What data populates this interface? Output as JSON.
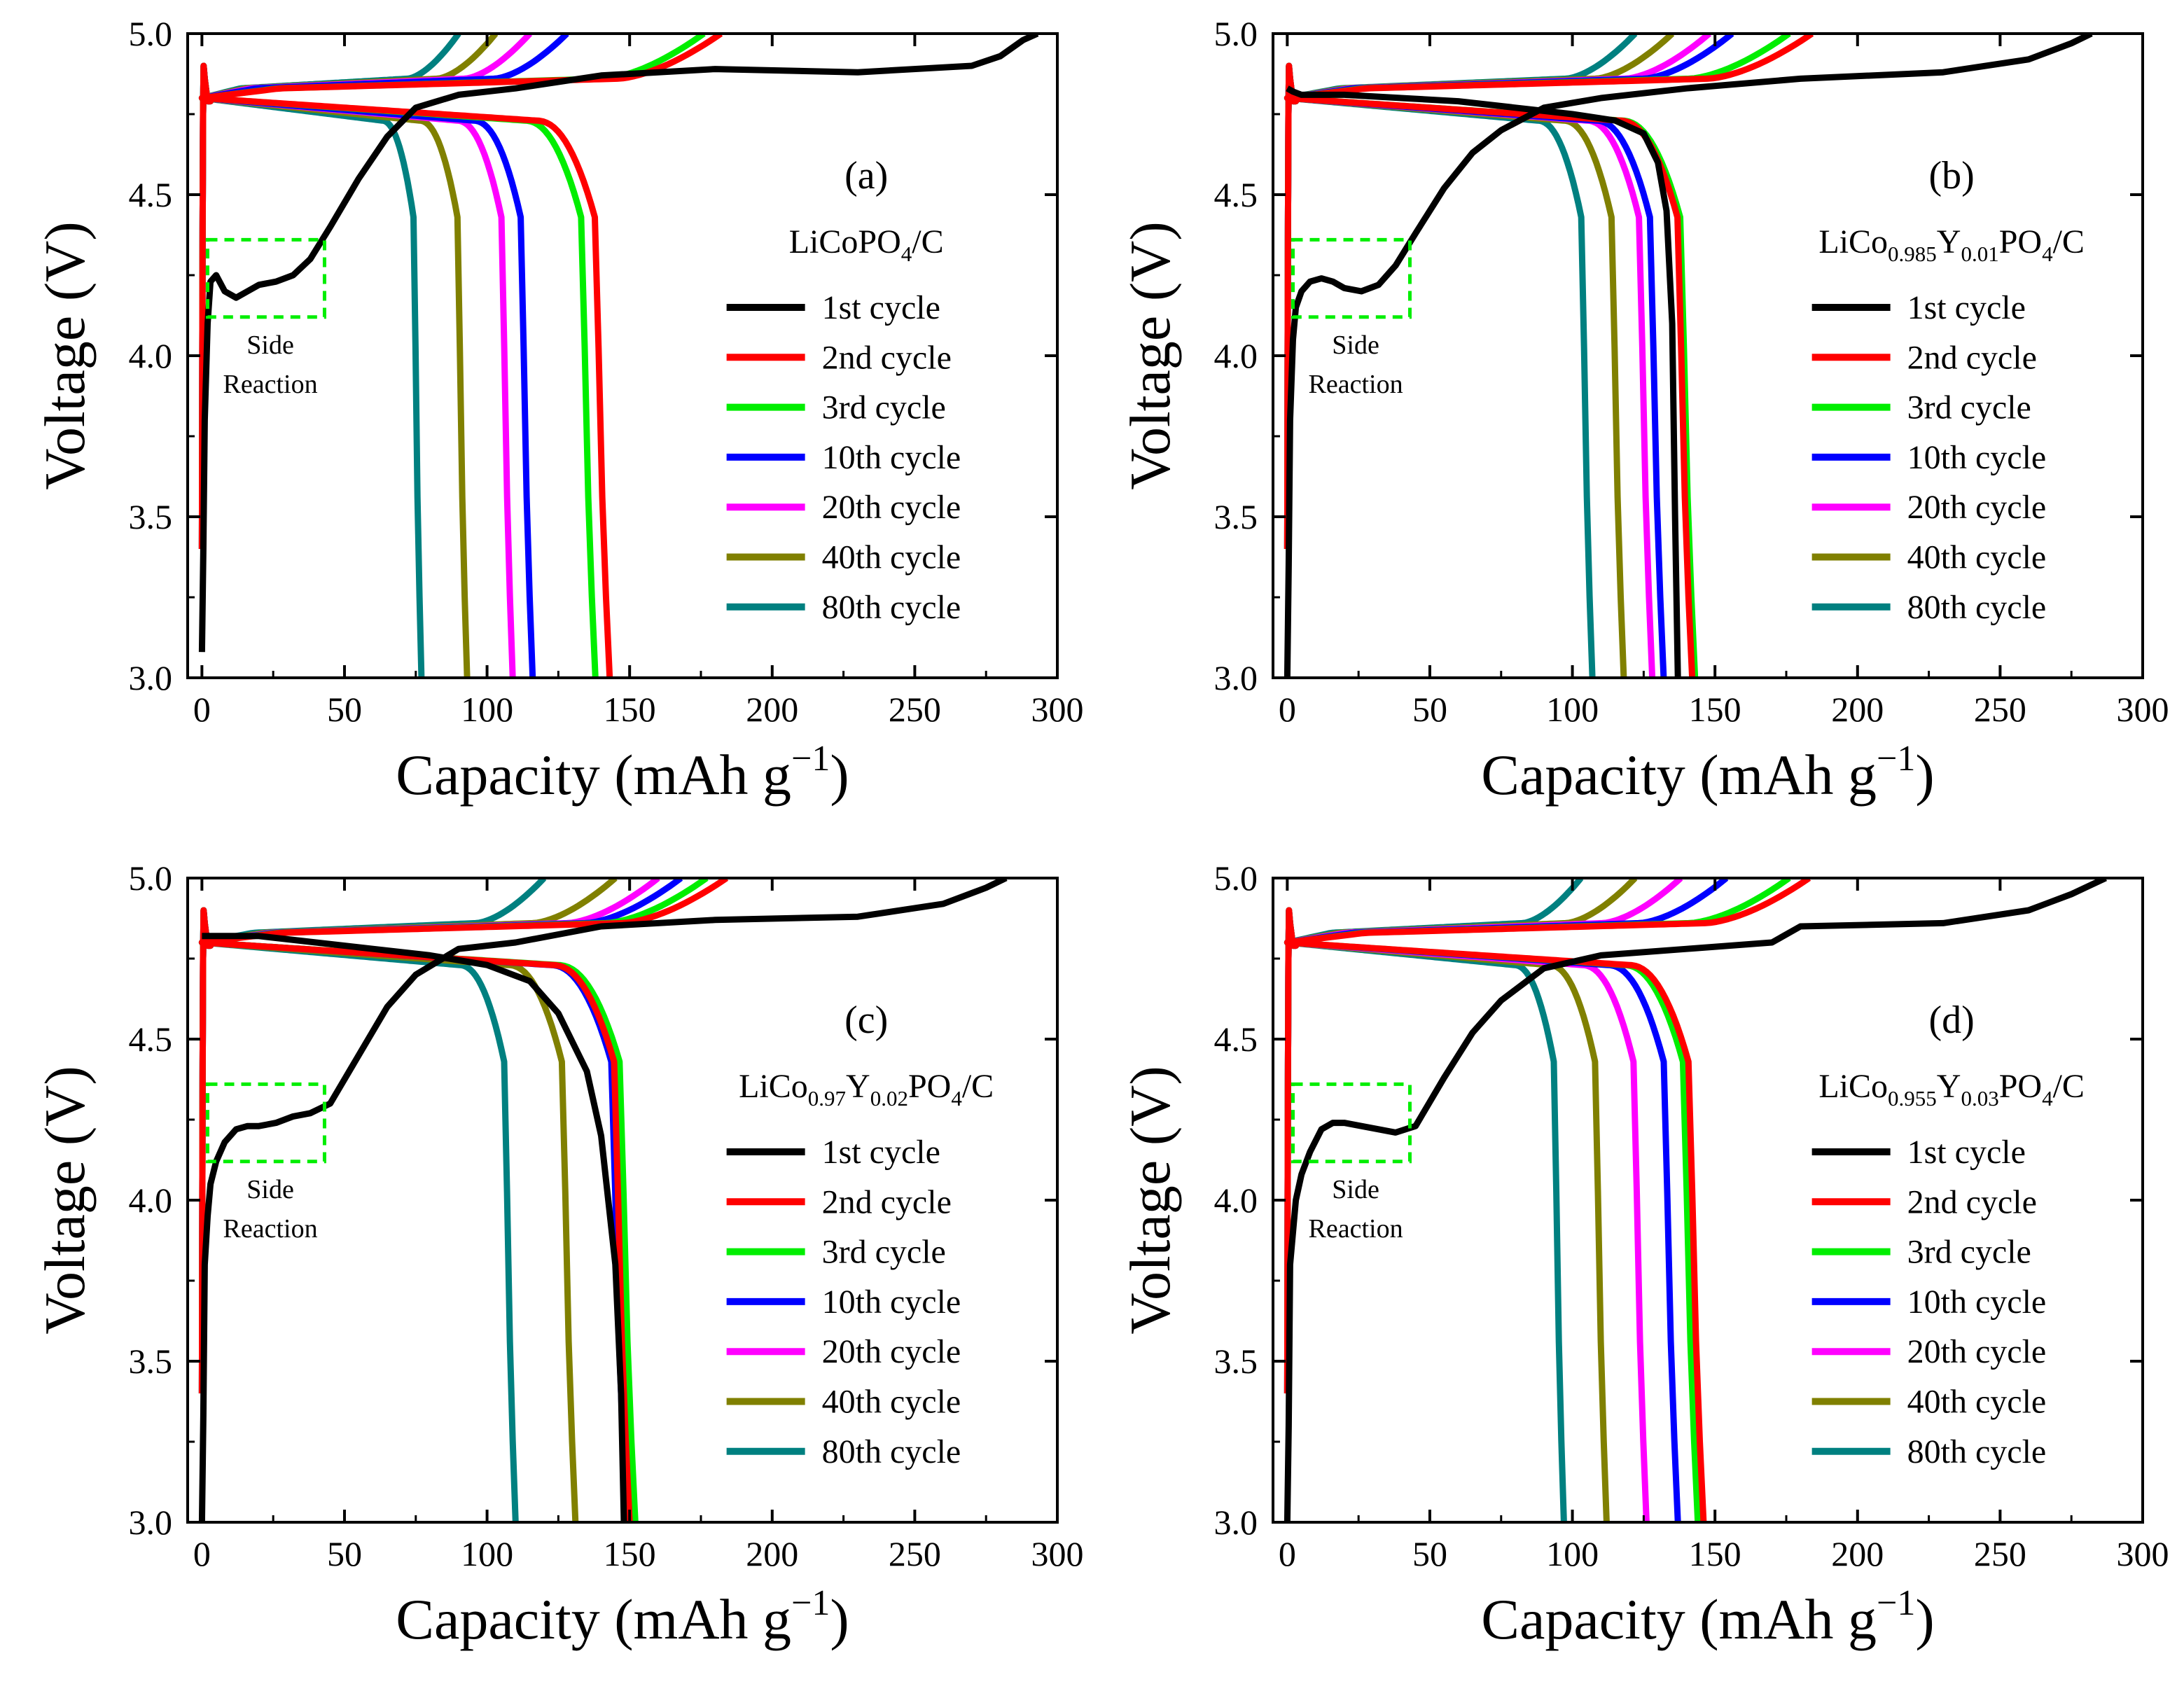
{
  "figure": {
    "legend_labels": [
      "1st cycle",
      "2nd cycle",
      "3rd cycle",
      "10th cycle",
      "20th cycle",
      "40th cycle",
      "80th cycle"
    ],
    "legend_colors": [
      "#000000",
      "#ff0000",
      "#00ee00",
      "#0000ff",
      "#ff00ff",
      "#808000",
      "#008080"
    ],
    "annotation_box_color": "#00ee00",
    "annotation_line1": "Side",
    "annotation_line2": "Reaction"
  },
  "chart_data": [
    {
      "type": "line",
      "panel": "(a)",
      "sample": {
        "base": "LiCoPO",
        "sub1": "4",
        "tail": "/C"
      },
      "xlabel": "Capacity (mAh g",
      "xlabel_sup": "−1",
      "ylabel": "Voltage (V)",
      "xlim": [
        -5,
        300
      ],
      "ylim": [
        3.0,
        5.0
      ],
      "xticks": [
        "0",
        "50",
        "100",
        "150",
        "200",
        "250",
        "300"
      ],
      "yticks": [
        "3.0",
        "3.5",
        "4.0",
        "4.5",
        "5.0"
      ],
      "first_charge": {
        "x": [
          0,
          0.5,
          1,
          2,
          3,
          5,
          8,
          12,
          16,
          20,
          26,
          32,
          38,
          45,
          55,
          65,
          75,
          90,
          110,
          140,
          180,
          230,
          270,
          280,
          288,
          293
        ],
        "y": [
          3.08,
          3.4,
          3.8,
          4.1,
          4.23,
          4.25,
          4.2,
          4.18,
          4.2,
          4.22,
          4.23,
          4.25,
          4.3,
          4.4,
          4.55,
          4.68,
          4.77,
          4.81,
          4.83,
          4.87,
          4.89,
          4.88,
          4.9,
          4.93,
          4.98,
          5.0
        ]
      },
      "first_discharge": null,
      "series": [
        {
          "name": "2nd cycle",
          "charge_end": 182,
          "discharge_end": 143
        },
        {
          "name": "3rd cycle",
          "charge_end": 176,
          "discharge_end": 138
        },
        {
          "name": "10th cycle",
          "charge_end": 128,
          "discharge_end": 116
        },
        {
          "name": "20th cycle",
          "charge_end": 115,
          "discharge_end": 109
        },
        {
          "name": "40th cycle",
          "charge_end": 103,
          "discharge_end": 93
        },
        {
          "name": "80th cycle",
          "charge_end": 90,
          "discharge_end": 77
        }
      ]
    },
    {
      "type": "line",
      "panel": "(b)",
      "sample": {
        "base": "LiCo",
        "sub1": "0.985",
        "mid": "Y",
        "sub2": "0.01",
        "post": "PO",
        "sub3": "4",
        "tail": "/C"
      },
      "xlabel": "Capacity (mAh g",
      "xlabel_sup": "−1",
      "ylabel": "Voltage (V)",
      "xlim": [
        -5,
        300
      ],
      "ylim": [
        3.0,
        5.0
      ],
      "xticks": [
        "0",
        "50",
        "100",
        "150",
        "200",
        "250",
        "300"
      ],
      "yticks": [
        "3.0",
        "3.5",
        "4.0",
        "4.5",
        "5.0"
      ],
      "first_charge": {
        "x": [
          0,
          0.5,
          1,
          2,
          3,
          5,
          8,
          12,
          16,
          20,
          26,
          32,
          38,
          45,
          55,
          65,
          75,
          90,
          110,
          140,
          180,
          230,
          260,
          275,
          282
        ],
        "y": [
          3.0,
          3.35,
          3.8,
          4.05,
          4.15,
          4.2,
          4.23,
          4.24,
          4.23,
          4.21,
          4.2,
          4.22,
          4.28,
          4.38,
          4.52,
          4.63,
          4.7,
          4.77,
          4.8,
          4.83,
          4.86,
          4.88,
          4.92,
          4.97,
          5.0
        ]
      },
      "first_discharge": {
        "x": [
          0,
          2,
          5,
          20,
          40,
          60,
          80,
          100,
          115,
          125,
          130,
          133,
          135,
          136,
          137
        ],
        "y": [
          4.83,
          4.82,
          4.81,
          4.81,
          4.8,
          4.79,
          4.77,
          4.75,
          4.73,
          4.69,
          4.6,
          4.45,
          4.1,
          3.5,
          3.0
        ]
      },
      "series": [
        {
          "name": "2nd cycle",
          "charge_end": 184,
          "discharge_end": 142
        },
        {
          "name": "3rd cycle",
          "charge_end": 176,
          "discharge_end": 143
        },
        {
          "name": "10th cycle",
          "charge_end": 156,
          "discharge_end": 132
        },
        {
          "name": "20th cycle",
          "charge_end": 148,
          "discharge_end": 128
        },
        {
          "name": "40th cycle",
          "charge_end": 135,
          "discharge_end": 118
        },
        {
          "name": "80th cycle",
          "charge_end": 122,
          "discharge_end": 107
        }
      ]
    },
    {
      "type": "line",
      "panel": "(c)",
      "sample": {
        "base": "LiCo",
        "sub1": "0.97",
        "mid": "Y",
        "sub2": "0.02",
        "post": "PO",
        "sub3": "4",
        "tail": "/C"
      },
      "xlabel": "Capacity (mAh g",
      "xlabel_sup": "−1",
      "ylabel": "Voltage (V)",
      "xlim": [
        -5,
        300
      ],
      "ylim": [
        3.0,
        5.0
      ],
      "xticks": [
        "0",
        "50",
        "100",
        "150",
        "200",
        "250",
        "300"
      ],
      "yticks": [
        "3.0",
        "3.5",
        "4.0",
        "4.5",
        "5.0"
      ],
      "first_charge": {
        "x": [
          0,
          0.5,
          1,
          2,
          3,
          5,
          8,
          12,
          16,
          20,
          26,
          32,
          38,
          45,
          55,
          65,
          75,
          90,
          110,
          140,
          180,
          230,
          260,
          275,
          282
        ],
        "y": [
          3.0,
          3.33,
          3.8,
          3.95,
          4.05,
          4.12,
          4.18,
          4.22,
          4.23,
          4.23,
          4.24,
          4.26,
          4.27,
          4.3,
          4.45,
          4.6,
          4.7,
          4.78,
          4.8,
          4.85,
          4.87,
          4.88,
          4.92,
          4.97,
          5.0
        ]
      },
      "first_discharge": {
        "x": [
          0,
          2,
          5,
          20,
          40,
          60,
          80,
          100,
          115,
          125,
          135,
          140,
          145,
          147,
          148
        ],
        "y": [
          4.82,
          4.82,
          4.82,
          4.82,
          4.8,
          4.78,
          4.76,
          4.73,
          4.68,
          4.58,
          4.4,
          4.2,
          3.8,
          3.4,
          3.0
        ]
      },
      "series": [
        {
          "name": "2nd cycle",
          "charge_end": 184,
          "discharge_end": 150
        },
        {
          "name": "3rd cycle",
          "charge_end": 177,
          "discharge_end": 152
        },
        {
          "name": "10th cycle",
          "charge_end": 168,
          "discharge_end": 149
        },
        {
          "name": "20th cycle",
          "charge_end": 160,
          "discharge_end": 150
        },
        {
          "name": "40th cycle",
          "charge_end": 145,
          "discharge_end": 131
        },
        {
          "name": "80th cycle",
          "charge_end": 120,
          "discharge_end": 110
        }
      ]
    },
    {
      "type": "line",
      "panel": "(d)",
      "sample": {
        "base": "LiCo",
        "sub1": "0.955",
        "mid": "Y",
        "sub2": "0.03",
        "post": "PO",
        "sub3": "4",
        "tail": "/C"
      },
      "xlabel": "Capacity (mAh g",
      "xlabel_sup": "−1",
      "ylabel": "Voltage (V)",
      "xlim": [
        -5,
        300
      ],
      "ylim": [
        3.0,
        5.0
      ],
      "xticks": [
        "0",
        "50",
        "100",
        "150",
        "200",
        "250",
        "300"
      ],
      "yticks": [
        "3.0",
        "3.5",
        "4.0",
        "4.5",
        "5.0"
      ],
      "first_charge": {
        "x": [
          0,
          0.5,
          1,
          2,
          3,
          5,
          8,
          12,
          16,
          20,
          26,
          32,
          38,
          45,
          55,
          65,
          75,
          90,
          110,
          140,
          170,
          180,
          230,
          260,
          275,
          287
        ],
        "y": [
          3.0,
          3.3,
          3.8,
          3.9,
          4.0,
          4.08,
          4.15,
          4.22,
          4.24,
          4.24,
          4.23,
          4.22,
          4.21,
          4.23,
          4.38,
          4.52,
          4.62,
          4.72,
          4.76,
          4.78,
          4.8,
          4.85,
          4.86,
          4.9,
          4.95,
          5.0
        ]
      },
      "first_discharge": null,
      "series": [
        {
          "name": "2nd cycle",
          "charge_end": 183,
          "discharge_end": 146
        },
        {
          "name": "3rd cycle",
          "charge_end": 176,
          "discharge_end": 144
        },
        {
          "name": "10th cycle",
          "charge_end": 154,
          "discharge_end": 137
        },
        {
          "name": "20th cycle",
          "charge_end": 138,
          "discharge_end": 126
        },
        {
          "name": "40th cycle",
          "charge_end": 122,
          "discharge_end": 112
        },
        {
          "name": "80th cycle",
          "charge_end": 103,
          "discharge_end": 97
        }
      ]
    }
  ]
}
